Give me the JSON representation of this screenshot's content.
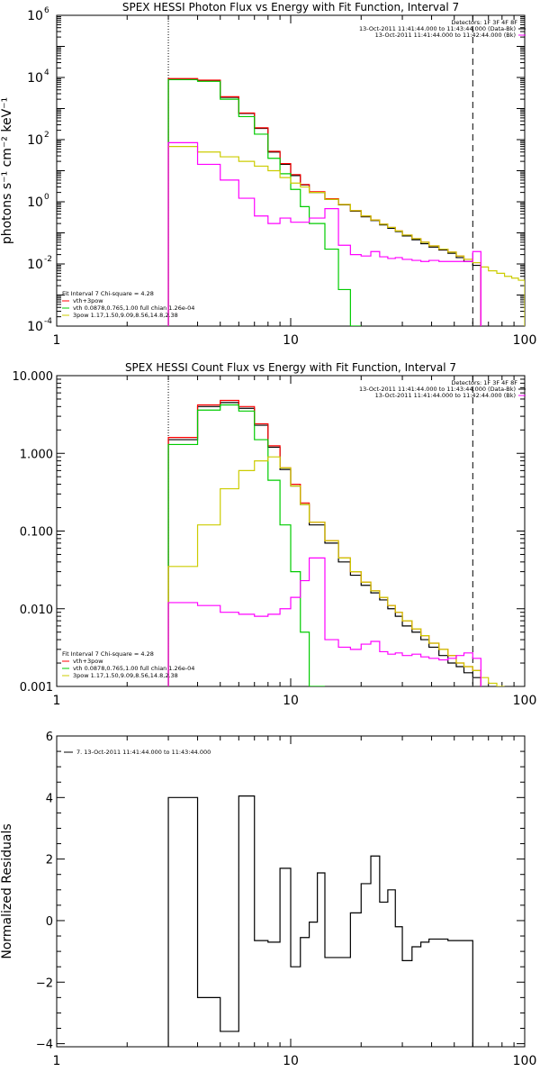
{
  "chart_data": [
    {
      "type": "line",
      "title": "SPEX HESSI Photon Flux vs Energy with Fit Function, Interval 7",
      "ylabel": "photons s⁻¹ cm⁻² keV⁻¹",
      "xlabel": "",
      "xscale": "log",
      "yscale": "log",
      "xlim": [
        1,
        100
      ],
      "ylim": [
        0.0001,
        1000000
      ],
      "x_ticks": [
        {
          "v": 1,
          "label": "1"
        },
        {
          "v": 10,
          "label": "10"
        },
        {
          "v": 100,
          "label": "100"
        }
      ],
      "y_ticks": [
        {
          "v": 0.0001,
          "base": "10",
          "exp": "-4"
        },
        {
          "v": 0.01,
          "base": "10",
          "exp": "-2"
        },
        {
          "v": 1,
          "base": "10",
          "exp": "0"
        },
        {
          "v": 100,
          "base": "10",
          "exp": "2"
        },
        {
          "v": 10000,
          "base": "10",
          "exp": "4"
        },
        {
          "v": 1000000,
          "base": "10",
          "exp": "6"
        }
      ],
      "vlines": [
        {
          "x": 3,
          "style": "dotted"
        },
        {
          "x": 60,
          "style": "dashed"
        }
      ],
      "legend_tr": {
        "header": "Detectors: 1F 3F 4F 8F",
        "entries": [
          {
            "text": "13-Oct-2011 11:41:44.000 to 11:43:44.000 (Data-Bk)",
            "color": "#000000"
          },
          {
            "text": "13-Oct-2011 11:41:44.000 to 11:42:44.000 (Bk)",
            "color": "#ff00ff"
          }
        ]
      },
      "legend_bl": {
        "header": "Fit Interval 7   Chi-square = 4.28",
        "entries": [
          {
            "text": "vth+3pow",
            "color": "#ff0000"
          },
          {
            "text": "vth 0.0878,0.765,1.00  full chian 1.26e-04",
            "color": "#00cc00"
          },
          {
            "text": "3pow 1.17,1.50,9.09,8.56,14.8,2.38",
            "color": "#cccc00"
          }
        ]
      },
      "edges": [
        3,
        4,
        5,
        6,
        7,
        8,
        9,
        10,
        11,
        12,
        14,
        16,
        18,
        20,
        22,
        24,
        26,
        28,
        30,
        33,
        36,
        39,
        43,
        47,
        51,
        55,
        60,
        65,
        70,
        76,
        82,
        88,
        94,
        100
      ],
      "series": [
        {
          "color": "#000000",
          "values": [
            9000,
            8000,
            2300,
            700,
            230,
            40,
            16,
            7,
            3.5,
            2,
            1.2,
            0.8,
            0.5,
            0.33,
            0.25,
            0.18,
            0.14,
            0.11,
            0.08,
            0.06,
            0.045,
            0.035,
            0.028,
            0.022,
            0.016,
            0.012,
            0.009
          ]
        },
        {
          "color": "#ff0000",
          "values": [
            9200,
            8200,
            2400,
            720,
            240,
            42,
            17,
            7.5,
            3.6,
            2.1,
            1.25,
            0.82,
            0.52,
            0.35,
            0.26,
            0.19,
            0.15,
            0.115,
            0.085,
            0.065,
            0.05,
            0.038,
            0.03,
            0.024,
            0.018,
            0.014,
            0.011
          ]
        },
        {
          "color": "#00cc00",
          "values": [
            8500,
            7500,
            2000,
            550,
            150,
            25,
            8,
            2.5,
            0.7,
            0.2,
            0.03,
            0.0015,
            0.0001
          ]
        },
        {
          "color": "#cccc00",
          "values": [
            60,
            40,
            28,
            20,
            14,
            10,
            6,
            4,
            3,
            2,
            1.2,
            0.82,
            0.52,
            0.35,
            0.26,
            0.19,
            0.15,
            0.115,
            0.085,
            0.065,
            0.05,
            0.038,
            0.03,
            0.024,
            0.018,
            0.014,
            0.011,
            0.008,
            0.006,
            0.005,
            0.004,
            0.0035,
            0.003
          ]
        },
        {
          "color": "#ff00ff",
          "values": [
            80,
            16,
            5,
            1.3,
            0.35,
            0.2,
            0.3,
            0.22,
            0.22,
            0.3,
            0.6,
            0.04,
            0.02,
            0.018,
            0.025,
            0.017,
            0.015,
            0.016,
            0.014,
            0.013,
            0.012,
            0.013,
            0.012,
            0.012,
            0.012,
            0.012,
            0.025
          ]
        }
      ]
    },
    {
      "type": "line",
      "title": "SPEX HESSI Count Flux vs Energy with Fit Function, Interval 7",
      "xlabel": "",
      "ylabel": "",
      "xscale": "log",
      "yscale": "log",
      "xlim": [
        1,
        100
      ],
      "ylim": [
        0.001,
        10
      ],
      "x_ticks": [
        {
          "v": 1,
          "label": "1"
        },
        {
          "v": 10,
          "label": "10"
        },
        {
          "v": 100,
          "label": "100"
        }
      ],
      "y_ticks": [
        {
          "v": 0.001,
          "label": "0.001"
        },
        {
          "v": 0.01,
          "label": "0.010"
        },
        {
          "v": 0.1,
          "label": "0.100"
        },
        {
          "v": 1,
          "label": "1.000"
        },
        {
          "v": 10,
          "label": "10.000"
        }
      ],
      "vlines": [
        {
          "x": 3,
          "style": "dotted"
        },
        {
          "x": 60,
          "style": "dashed"
        }
      ],
      "legend_tr": {
        "header": "Detectors: 1F 3F 4F 8F",
        "entries": [
          {
            "text": "13-Oct-2011 11:41:44.000 to 11:43:44.000 (Data-Bk)",
            "color": "#000000"
          },
          {
            "text": "13-Oct-2011 11:41:44.000 to 11:42:44.000 (Bk)",
            "color": "#ff00ff"
          }
        ]
      },
      "legend_bl": {
        "header": "Fit Interval 7   Chi-square = 4.28",
        "entries": [
          {
            "text": "vth+3pow",
            "color": "#ff0000"
          },
          {
            "text": "vth 0.0878,0.765,1.00  full chian 1.26e-04",
            "color": "#00cc00"
          },
          {
            "text": "3pow 1.17,1.50,9.09,8.56,14.8,2.38",
            "color": "#cccc00"
          }
        ]
      },
      "edges": [
        3,
        4,
        5,
        6,
        7,
        8,
        9,
        10,
        11,
        12,
        14,
        16,
        18,
        20,
        22,
        24,
        26,
        28,
        30,
        33,
        36,
        39,
        43,
        47,
        51,
        55,
        60,
        65,
        70,
        76,
        82,
        88,
        94,
        100
      ],
      "series": [
        {
          "color": "#000000",
          "values": [
            1.5,
            4.0,
            4.5,
            3.8,
            2.3,
            1.2,
            0.62,
            0.38,
            0.22,
            0.12,
            0.07,
            0.04,
            0.027,
            0.02,
            0.016,
            0.013,
            0.01,
            0.008,
            0.006,
            0.005,
            0.004,
            0.0032,
            0.0025,
            0.002,
            0.0018,
            0.0015,
            0.0013
          ]
        },
        {
          "color": "#ff0000",
          "values": [
            1.6,
            4.2,
            4.8,
            4.0,
            2.4,
            1.25,
            0.65,
            0.4,
            0.23,
            0.13,
            0.075,
            0.045,
            0.03,
            0.022,
            0.017,
            0.014,
            0.011,
            0.009,
            0.007,
            0.0055,
            0.0045,
            0.0036,
            0.003,
            0.0025,
            0.002,
            0.0018,
            0.0016
          ]
        },
        {
          "color": "#00cc00",
          "values": [
            1.3,
            3.6,
            4.2,
            3.5,
            1.5,
            0.45,
            0.12,
            0.03,
            0.005,
            0.001
          ]
        },
        {
          "color": "#cccc00",
          "values": [
            0.035,
            0.12,
            0.35,
            0.6,
            0.8,
            0.9,
            0.65,
            0.38,
            0.22,
            0.13,
            0.075,
            0.045,
            0.03,
            0.022,
            0.017,
            0.014,
            0.011,
            0.009,
            0.007,
            0.0055,
            0.0045,
            0.0036,
            0.003,
            0.0025,
            0.002,
            0.0018,
            0.0016,
            0.0013,
            0.0011,
            0.001
          ]
        },
        {
          "color": "#ff00ff",
          "values": [
            0.012,
            0.011,
            0.009,
            0.0085,
            0.008,
            0.0085,
            0.01,
            0.014,
            0.023,
            0.045,
            0.004,
            0.0032,
            0.003,
            0.0035,
            0.0038,
            0.0028,
            0.0026,
            0.0027,
            0.0025,
            0.0026,
            0.0024,
            0.0023,
            0.0022,
            0.0023,
            0.0025,
            0.0027,
            0.0023
          ]
        }
      ]
    },
    {
      "type": "line",
      "title": "",
      "xlabel": "",
      "ylabel": "Normalized Residuals",
      "xscale": "log",
      "yscale": "linear",
      "xlim": [
        1,
        100
      ],
      "ylim": [
        -4.1,
        6
      ],
      "x_ticks": [
        {
          "v": 1,
          "label": "1"
        },
        {
          "v": 10,
          "label": "10"
        },
        {
          "v": 100,
          "label": "100"
        }
      ],
      "y_ticks": [
        {
          "v": -4,
          "label": "−4"
        },
        {
          "v": -2,
          "label": "−2"
        },
        {
          "v": 0,
          "label": "0"
        },
        {
          "v": 2,
          "label": "2"
        },
        {
          "v": 4,
          "label": "4"
        },
        {
          "v": 6,
          "label": "6"
        }
      ],
      "legend_tl": {
        "entries": [
          {
            "text": "7. 13-Oct-2011 11:41:44.000 to 11:43:44.000",
            "color": "#000000"
          }
        ]
      },
      "edges": [
        3,
        4,
        5,
        6,
        7,
        8,
        9,
        10,
        11,
        12,
        13,
        14,
        16,
        18,
        20,
        22,
        24,
        26,
        28,
        30,
        33,
        36,
        39,
        43,
        47,
        51,
        55,
        60
      ],
      "series": [
        {
          "color": "#000000",
          "values": [
            4.0,
            -2.5,
            -3.6,
            4.05,
            -0.65,
            -0.7,
            1.7,
            -1.5,
            -0.55,
            -0.05,
            1.55,
            -1.2,
            -1.2,
            0.25,
            1.2,
            2.1,
            0.6,
            1.0,
            -0.2,
            -1.3,
            -0.85,
            -0.7,
            -0.6,
            -0.6,
            -0.65,
            -0.65,
            -0.65
          ]
        }
      ]
    }
  ]
}
